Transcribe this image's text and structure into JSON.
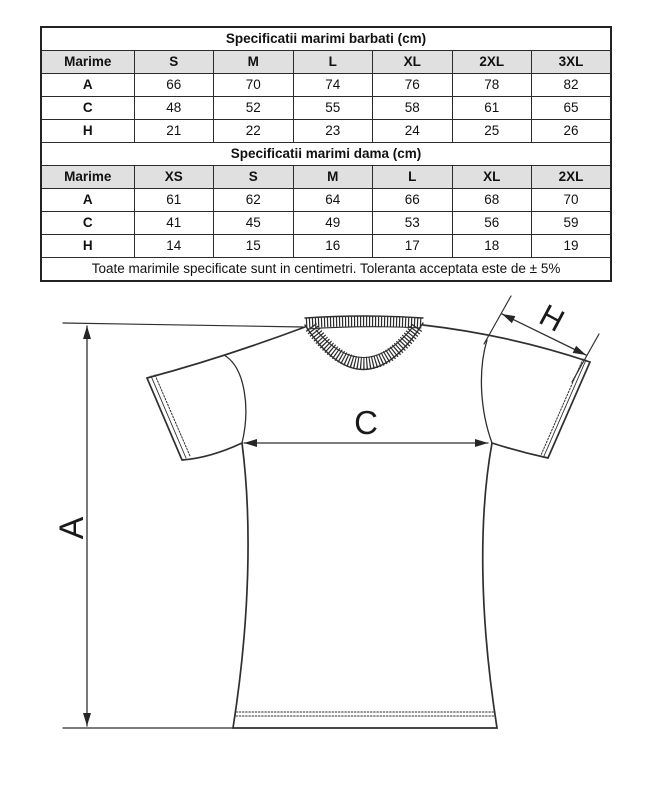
{
  "tables": [
    {
      "title": "Specificatii marimi barbati (cm)",
      "header": [
        "Marime",
        "S",
        "M",
        "L",
        "XL",
        "2XL",
        "3XL"
      ],
      "rows": [
        {
          "label": "A",
          "values": [
            "66",
            "70",
            "74",
            "76",
            "78",
            "82"
          ]
        },
        {
          "label": "C",
          "values": [
            "48",
            "52",
            "55",
            "58",
            "61",
            "65"
          ]
        },
        {
          "label": "H",
          "values": [
            "21",
            "22",
            "23",
            "24",
            "25",
            "26"
          ]
        }
      ]
    },
    {
      "title": "Specificatii marimi dama (cm)",
      "header": [
        "Marime",
        "XS",
        "S",
        "M",
        "L",
        "XL",
        "2XL"
      ],
      "rows": [
        {
          "label": "A",
          "values": [
            "61",
            "62",
            "64",
            "66",
            "68",
            "70"
          ]
        },
        {
          "label": "C",
          "values": [
            "41",
            "45",
            "49",
            "53",
            "56",
            "59"
          ]
        },
        {
          "label": "H",
          "values": [
            "14",
            "15",
            "16",
            "17",
            "18",
            "19"
          ]
        }
      ]
    }
  ],
  "footnote": "Toate marimile specificate sunt in centimetri. Toleranta acceptata este de ± 5%",
  "diagram": {
    "labels": {
      "length": "A",
      "chest": "C",
      "sleeve": "H"
    }
  },
  "colors": {
    "header_bg": "#e0e0e0",
    "border": "#2b2b2b",
    "line": "#2f2f2f",
    "text": "#111111"
  }
}
